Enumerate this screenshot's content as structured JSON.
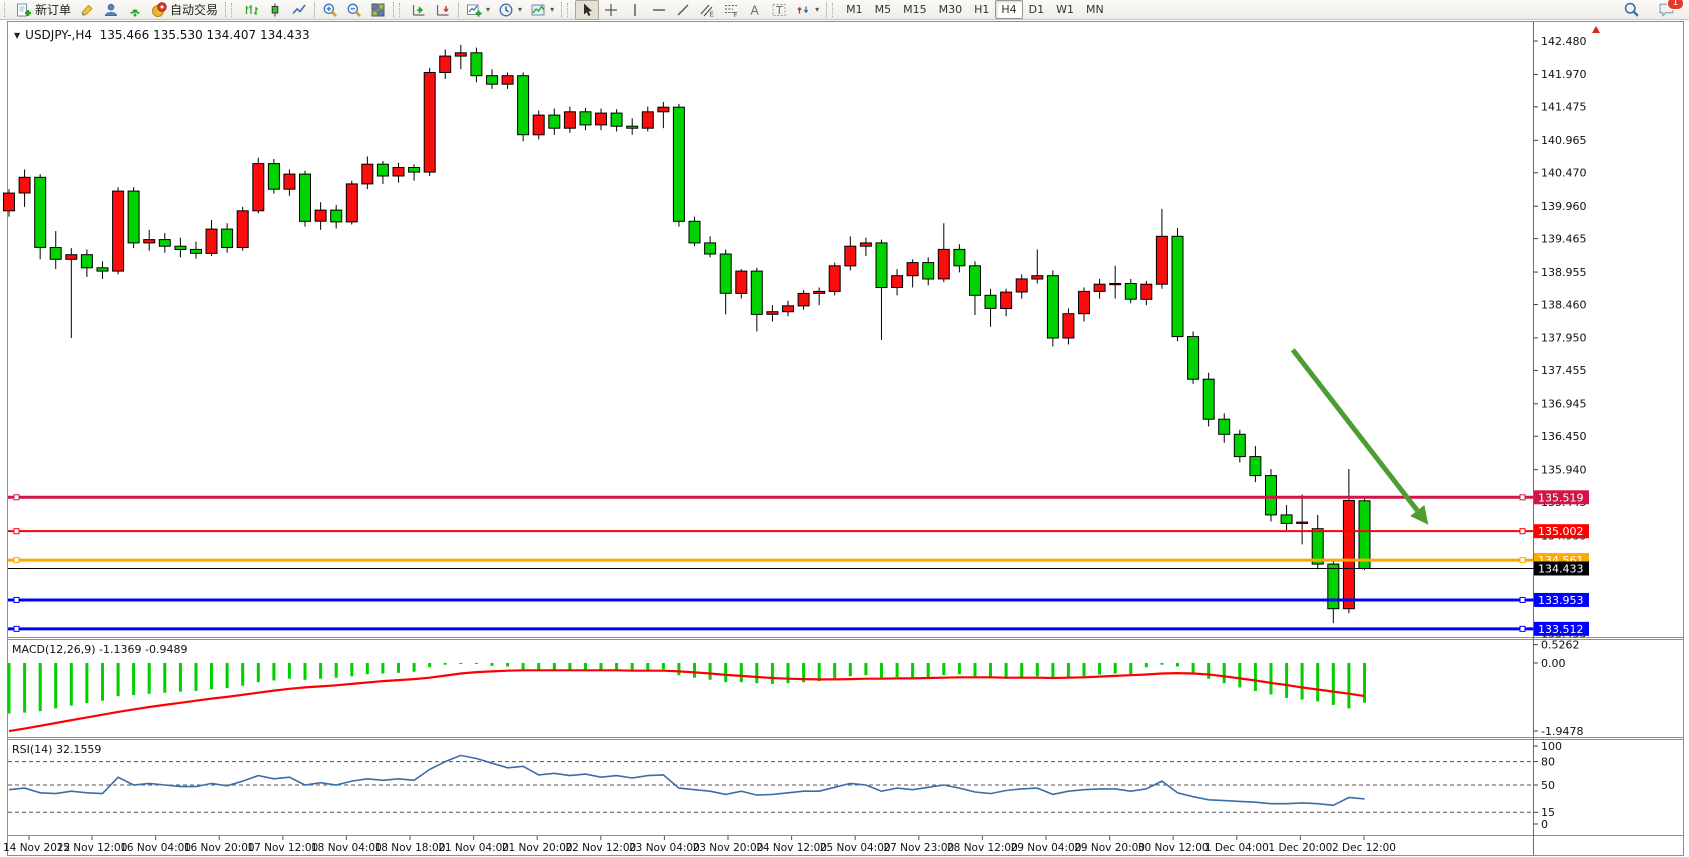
{
  "toolbar": {
    "new_order_label": "新订单",
    "auto_trading_label": "自动交易",
    "timeframes": [
      "M1",
      "M5",
      "M15",
      "M30",
      "H1",
      "H4",
      "D1",
      "W1",
      "MN"
    ],
    "active_timeframe": "H4",
    "notification_count": "1",
    "glyphs": {
      "dropdown": "▾",
      "text_tool": "A",
      "label_tool": "T",
      "channel_sub": "E",
      "fibo_sub": "F"
    }
  },
  "chart": {
    "title": "USDJPY-,H4  135.466 135.530 134.407 134.433",
    "dropdown_glyph": "▼"
  },
  "chart_data": {
    "type": "candlestick",
    "symbol": "USDJPY-",
    "period": "H4",
    "ohlc_current": {
      "open": 135.466,
      "high": 135.53,
      "low": 134.407,
      "close": 134.433
    },
    "colors": {
      "up": "#f90d0d",
      "down": "#00d300",
      "wick": "#000000",
      "macd_hist": "#00cf00",
      "macd_signal": "#ff0000",
      "rsi_line": "#3a6ea8",
      "arrow": "#4e9d32"
    },
    "price_axis": {
      "ticks": [
        "142.480",
        "141.970",
        "141.475",
        "140.965",
        "140.470",
        "139.960",
        "139.465",
        "138.955",
        "138.460",
        "137.950",
        "137.455",
        "136.945",
        "136.450",
        "135.940",
        "135.445",
        "134.935",
        "134.440",
        "133.930",
        "133.435"
      ],
      "tick_values": [
        142.48,
        141.97,
        141.475,
        140.965,
        140.47,
        139.96,
        139.465,
        138.955,
        138.46,
        137.95,
        137.455,
        136.945,
        136.45,
        135.94,
        135.445,
        134.935,
        134.44,
        133.93,
        133.435
      ]
    },
    "time_labels": [
      "14 Nov 2022",
      "15 Nov 12:00",
      "16 Nov 04:00",
      "16 Nov 20:00",
      "17 Nov 12:00",
      "18 Nov 04:00",
      "18 Nov 18:00",
      "21 Nov 04:00",
      "21 Nov 20:00",
      "22 Nov 12:00",
      "23 Nov 04:00",
      "23 Nov 20:00",
      "24 Nov 12:00",
      "25 Nov 04:00",
      "27 Nov 23:00",
      "28 Nov 12:00",
      "29 Nov 04:00",
      "29 Nov 20:00",
      "30 Nov 12:00",
      "1 Dec 04:00",
      "1 Dec 20:00",
      "2 Dec 12:00"
    ],
    "candles": [
      [
        139.89,
        140.22,
        139.8,
        140.16
      ],
      [
        140.16,
        140.52,
        139.95,
        140.4
      ],
      [
        140.4,
        140.45,
        139.15,
        139.33
      ],
      [
        139.33,
        139.58,
        139.0,
        139.15
      ],
      [
        139.15,
        139.32,
        137.95,
        139.22
      ],
      [
        139.22,
        139.3,
        138.88,
        139.02
      ],
      [
        139.02,
        139.12,
        138.85,
        138.97
      ],
      [
        138.97,
        140.25,
        138.92,
        140.19
      ],
      [
        140.19,
        140.25,
        139.32,
        139.4
      ],
      [
        139.4,
        139.6,
        139.28,
        139.45
      ],
      [
        139.45,
        139.55,
        139.25,
        139.35
      ],
      [
        139.35,
        139.48,
        139.18,
        139.3
      ],
      [
        139.3,
        139.42,
        139.16,
        139.24
      ],
      [
        139.24,
        139.75,
        139.2,
        139.61
      ],
      [
        139.61,
        139.7,
        139.25,
        139.33
      ],
      [
        139.33,
        139.95,
        139.28,
        139.89
      ],
      [
        139.89,
        140.7,
        139.85,
        140.61
      ],
      [
        140.61,
        140.68,
        140.15,
        140.22
      ],
      [
        140.22,
        140.52,
        140.12,
        140.45
      ],
      [
        140.45,
        140.5,
        139.65,
        139.73
      ],
      [
        139.73,
        140.02,
        139.6,
        139.9
      ],
      [
        139.9,
        139.98,
        139.62,
        139.72
      ],
      [
        139.72,
        140.35,
        139.68,
        140.3
      ],
      [
        140.3,
        140.72,
        140.22,
        140.6
      ],
      [
        140.6,
        140.65,
        140.3,
        140.42
      ],
      [
        140.42,
        140.62,
        140.32,
        140.55
      ],
      [
        140.55,
        140.6,
        140.35,
        140.48
      ],
      [
        140.48,
        142.07,
        140.42,
        142.0
      ],
      [
        142.0,
        142.35,
        141.9,
        142.25
      ],
      [
        142.25,
        142.42,
        142.05,
        142.3
      ],
      [
        142.3,
        142.38,
        141.85,
        141.95
      ],
      [
        141.95,
        142.05,
        141.75,
        141.82
      ],
      [
        141.82,
        142.0,
        141.75,
        141.95
      ],
      [
        141.95,
        142.0,
        140.95,
        141.05
      ],
      [
        141.05,
        141.42,
        140.98,
        141.35
      ],
      [
        141.35,
        141.45,
        141.05,
        141.15
      ],
      [
        141.15,
        141.48,
        141.08,
        141.4
      ],
      [
        141.4,
        141.46,
        141.12,
        141.2
      ],
      [
        141.2,
        141.45,
        141.12,
        141.38
      ],
      [
        141.38,
        141.44,
        141.1,
        141.18
      ],
      [
        141.18,
        141.3,
        141.05,
        141.15
      ],
      [
        141.15,
        141.48,
        141.1,
        141.4
      ],
      [
        141.4,
        141.55,
        141.15,
        141.47
      ],
      [
        141.47,
        141.52,
        139.65,
        139.73
      ],
      [
        139.73,
        139.8,
        139.35,
        139.4
      ],
      [
        139.4,
        139.5,
        139.18,
        139.23
      ],
      [
        139.23,
        139.3,
        138.31,
        138.63
      ],
      [
        138.63,
        139.0,
        138.55,
        138.97
      ],
      [
        138.97,
        139.02,
        138.05,
        138.31
      ],
      [
        138.31,
        138.45,
        138.2,
        138.35
      ],
      [
        138.35,
        138.52,
        138.28,
        138.44
      ],
      [
        138.44,
        138.68,
        138.38,
        138.63
      ],
      [
        138.63,
        138.72,
        138.45,
        138.66
      ],
      [
        138.66,
        139.1,
        138.6,
        139.05
      ],
      [
        139.05,
        139.5,
        138.98,
        139.35
      ],
      [
        139.35,
        139.48,
        139.2,
        139.4
      ],
      [
        139.4,
        139.45,
        137.92,
        138.72
      ],
      [
        138.72,
        139.0,
        138.6,
        138.9
      ],
      [
        138.9,
        139.15,
        138.72,
        139.1
      ],
      [
        139.1,
        139.18,
        138.75,
        138.85
      ],
      [
        138.85,
        139.7,
        138.8,
        139.3
      ],
      [
        139.3,
        139.38,
        138.95,
        139.05
      ],
      [
        139.05,
        139.12,
        138.3,
        138.6
      ],
      [
        138.6,
        138.7,
        138.12,
        138.4
      ],
      [
        138.4,
        138.7,
        138.28,
        138.65
      ],
      [
        138.65,
        138.92,
        138.55,
        138.85
      ],
      [
        138.85,
        139.3,
        138.78,
        138.9
      ],
      [
        138.9,
        138.98,
        137.82,
        137.95
      ],
      [
        137.95,
        138.4,
        137.85,
        138.32
      ],
      [
        138.32,
        138.72,
        138.2,
        138.66
      ],
      [
        138.66,
        138.85,
        138.55,
        138.77
      ],
      [
        138.77,
        139.05,
        138.55,
        138.78
      ],
      [
        138.78,
        138.85,
        138.48,
        138.54
      ],
      [
        138.54,
        138.82,
        138.45,
        138.77
      ],
      [
        138.77,
        139.92,
        138.7,
        139.5
      ],
      [
        139.5,
        139.63,
        137.9,
        137.97
      ],
      [
        137.97,
        138.05,
        137.25,
        137.32
      ],
      [
        137.32,
        137.42,
        136.6,
        136.71
      ],
      [
        136.71,
        136.8,
        136.35,
        136.48
      ],
      [
        136.48,
        136.55,
        136.05,
        136.14
      ],
      [
        136.14,
        136.3,
        135.75,
        135.85
      ],
      [
        135.85,
        135.95,
        135.15,
        135.25
      ],
      [
        135.25,
        135.4,
        135.02,
        135.12
      ],
      [
        135.12,
        135.56,
        134.8,
        135.14
      ],
      [
        135.04,
        135.25,
        134.42,
        134.5
      ],
      [
        134.5,
        134.58,
        133.6,
        133.82
      ],
      [
        133.82,
        135.95,
        133.75,
        135.47
      ],
      [
        135.466,
        135.53,
        134.407,
        134.433
      ]
    ],
    "hlines": [
      {
        "value": 135.519,
        "label": "135.519",
        "color": "#d01648",
        "width": 3
      },
      {
        "value": 135.002,
        "label": "135.002",
        "color": "#ff0000",
        "width": 2
      },
      {
        "value": 134.561,
        "label": "134.561",
        "color": "#ffa800",
        "width": 3
      },
      {
        "value": 134.433,
        "label": "134.433",
        "color": "#000000",
        "width": 1,
        "is_price": true
      },
      {
        "value": 133.953,
        "label": "133.953",
        "color": "#0000ff",
        "width": 3
      },
      {
        "value": 133.512,
        "label": "133.512",
        "color": "#0000ff",
        "width": 3
      }
    ],
    "trend_arrow": {
      "from_index": 82.4,
      "from_price": 137.77,
      "to_index": 91.1,
      "to_price": 135.1
    },
    "macd": {
      "label_text": "MACD(12,26,9) -1.1369 -0.9489",
      "name": "MACD(12,26,9)",
      "value": -1.1369,
      "signal_value": -0.9489,
      "axis": [
        {
          "v": 0.5262,
          "label": "0.5262"
        },
        {
          "v": 0.0,
          "label": "0.00"
        },
        {
          "v": -1.9478,
          "label": "-1.9478"
        }
      ],
      "hist": [
        -1.45,
        -1.42,
        -1.38,
        -1.3,
        -1.22,
        -1.15,
        -1.08,
        -0.95,
        -0.92,
        -0.88,
        -0.85,
        -0.82,
        -0.8,
        -0.75,
        -0.72,
        -0.65,
        -0.55,
        -0.5,
        -0.45,
        -0.48,
        -0.45,
        -0.42,
        -0.38,
        -0.32,
        -0.3,
        -0.28,
        -0.25,
        -0.12,
        -0.05,
        -0.02,
        -0.03,
        -0.08,
        -0.1,
        -0.18,
        -0.2,
        -0.22,
        -0.2,
        -0.22,
        -0.2,
        -0.22,
        -0.24,
        -0.2,
        -0.18,
        -0.35,
        -0.42,
        -0.48,
        -0.55,
        -0.55,
        -0.58,
        -0.6,
        -0.58,
        -0.55,
        -0.52,
        -0.45,
        -0.38,
        -0.35,
        -0.42,
        -0.4,
        -0.42,
        -0.4,
        -0.35,
        -0.32,
        -0.38,
        -0.42,
        -0.45,
        -0.42,
        -0.38,
        -0.45,
        -0.42,
        -0.38,
        -0.33,
        -0.3,
        -0.32,
        -0.12,
        -0.05,
        -0.1,
        -0.3,
        -0.45,
        -0.58,
        -0.7,
        -0.8,
        -0.9,
        -1.0,
        -1.05,
        -1.1,
        -1.2,
        -1.3,
        -1.1369
      ],
      "signal": [
        -1.95,
        -1.88,
        -1.8,
        -1.72,
        -1.64,
        -1.56,
        -1.48,
        -1.4,
        -1.33,
        -1.26,
        -1.2,
        -1.14,
        -1.08,
        -1.02,
        -0.97,
        -0.91,
        -0.85,
        -0.79,
        -0.74,
        -0.7,
        -0.67,
        -0.64,
        -0.6,
        -0.56,
        -0.52,
        -0.49,
        -0.46,
        -0.42,
        -0.36,
        -0.3,
        -0.26,
        -0.24,
        -0.22,
        -0.21,
        -0.21,
        -0.21,
        -0.21,
        -0.21,
        -0.21,
        -0.21,
        -0.22,
        -0.22,
        -0.22,
        -0.24,
        -0.27,
        -0.3,
        -0.34,
        -0.37,
        -0.4,
        -0.43,
        -0.45,
        -0.46,
        -0.47,
        -0.47,
        -0.46,
        -0.45,
        -0.45,
        -0.44,
        -0.44,
        -0.43,
        -0.42,
        -0.41,
        -0.41,
        -0.41,
        -0.42,
        -0.42,
        -0.42,
        -0.43,
        -0.42,
        -0.41,
        -0.39,
        -0.37,
        -0.35,
        -0.33,
        -0.3,
        -0.29,
        -0.3,
        -0.33,
        -0.38,
        -0.44,
        -0.5,
        -0.57,
        -0.63,
        -0.7,
        -0.76,
        -0.82,
        -0.88,
        -0.9489
      ]
    },
    "rsi": {
      "label_text": "RSI(14) 32.1559",
      "name": "RSI(14)",
      "value": 32.1559,
      "levels": [
        80,
        50,
        15
      ],
      "axis": [
        {
          "v": 100,
          "label": "100"
        },
        {
          "v": 80,
          "label": "80"
        },
        {
          "v": 50,
          "label": "50"
        },
        {
          "v": 15,
          "label": "15"
        },
        {
          "v": 0,
          "label": "0"
        }
      ],
      "values": [
        44,
        46,
        40,
        39,
        42,
        40,
        39,
        60,
        50,
        52,
        50,
        48,
        48,
        52,
        49,
        55,
        62,
        58,
        60,
        50,
        53,
        50,
        55,
        58,
        56,
        58,
        56,
        70,
        80,
        88,
        84,
        78,
        72,
        74,
        63,
        65,
        62,
        64,
        60,
        62,
        59,
        62,
        63,
        46,
        44,
        42,
        38,
        42,
        37,
        38,
        40,
        42,
        42,
        47,
        52,
        50,
        42,
        46,
        44,
        47,
        50,
        46,
        41,
        39,
        43,
        45,
        46,
        38,
        42,
        44,
        45,
        45,
        42,
        45,
        55,
        40,
        35,
        31,
        30,
        29,
        28,
        26,
        26,
        27,
        26,
        24,
        34,
        32.16
      ]
    }
  }
}
